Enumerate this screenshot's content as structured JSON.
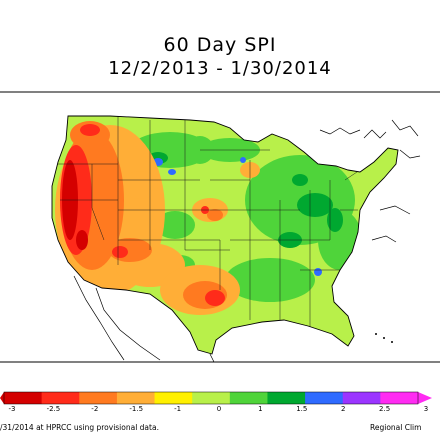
{
  "title": "60 Day SPI",
  "subtitle": "12/2/2013 - 1/30/2014",
  "legend": {
    "ticks": [
      "-3",
      "-2.5",
      "-2",
      "-1.5",
      "-1",
      "0",
      "1",
      "1.5",
      "2",
      "2.5",
      "3"
    ],
    "colors": [
      "#d40000",
      "#ff2b1a",
      "#ff7a20",
      "#ffae37",
      "#fff000",
      "#b8f04a",
      "#4fd43a",
      "#00a830",
      "#2f6bff",
      "#9b35ff",
      "#ff2bf2"
    ]
  },
  "footer": {
    "left": "/31/2014 at HPRCC using provisional data.",
    "right": "Regional Clim"
  },
  "colors": {
    "drought_extreme": "#d40000",
    "drought_severe": "#ff2b1a",
    "drought_moderate": "#ff7a20",
    "dry": "#ffae37",
    "near_normal": "#b8f04a",
    "wet": "#4fd43a",
    "very_wet": "#00a830",
    "extremely_wet": "#2f6bff"
  }
}
